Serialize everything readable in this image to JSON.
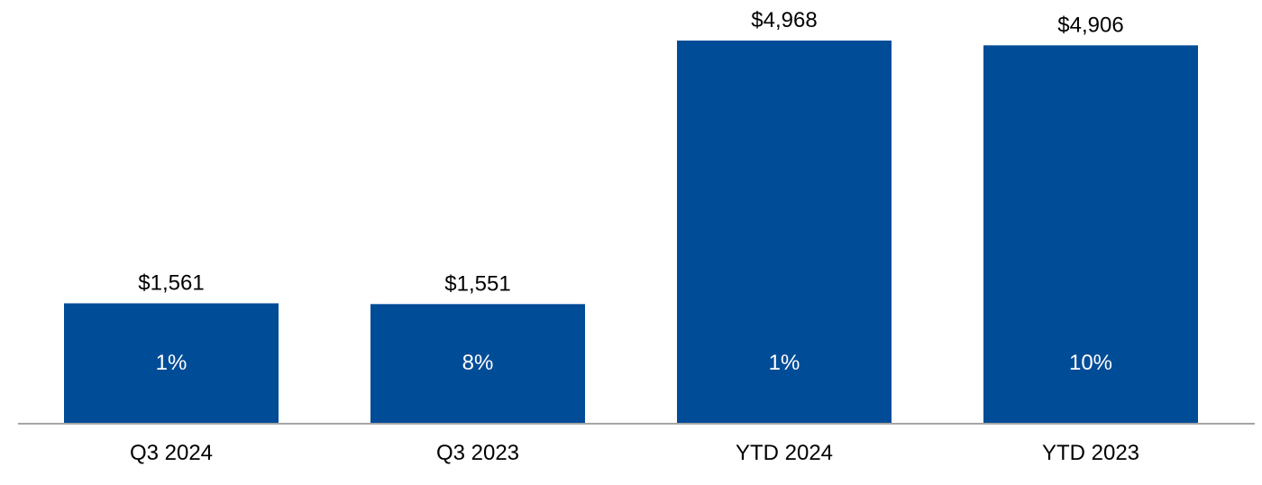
{
  "chart_data": {
    "type": "bar",
    "title": "",
    "xlabel": "",
    "ylabel": "",
    "categories": [
      "Q3 2024",
      "Q3 2023",
      "YTD 2024",
      "YTD 2023"
    ],
    "values": [
      1561,
      1551,
      4968,
      4906
    ],
    "value_labels": [
      "$1,561",
      "$1,551",
      "$4,968",
      "$4,906"
    ],
    "growth_labels": [
      "1%",
      "8%",
      "1%",
      "10%"
    ],
    "ylim": [
      0,
      5000
    ],
    "grid": false,
    "legend": "none",
    "bar_color": "#004C97",
    "axis_color": "#A6A6A6"
  }
}
